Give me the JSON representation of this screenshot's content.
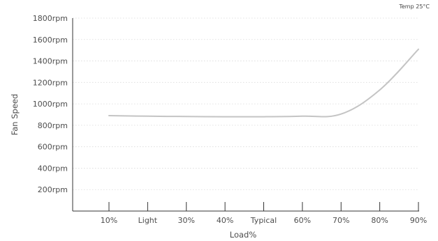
{
  "note": "Temp 25°C",
  "chart_data": {
    "type": "line",
    "xlabel": "Load%",
    "ylabel": "Fan Speed",
    "categories": [
      "10%",
      "Light",
      "30%",
      "40%",
      "Typical",
      "60%",
      "70%",
      "80%",
      "90%"
    ],
    "y_ticks": [
      200,
      400,
      600,
      800,
      1000,
      1200,
      1400,
      1600,
      1800
    ],
    "y_tick_labels": [
      "200rpm",
      "400rpm",
      "600rpm",
      "800rpm",
      "1000rpm",
      "1200rpm",
      "1400rpm",
      "1600rpm",
      "1800rpm"
    ],
    "ylim": [
      0,
      1800
    ],
    "grid": true,
    "series": [
      {
        "values": [
          890,
          885,
          882,
          880,
          880,
          885,
          905,
          1130,
          1510
        ],
        "color": "#c4c4c4"
      }
    ]
  }
}
